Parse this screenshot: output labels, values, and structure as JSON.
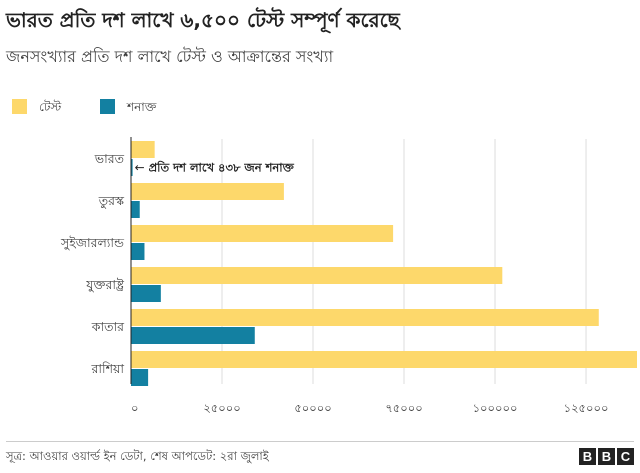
{
  "chart_data": {
    "type": "bar",
    "orientation": "horizontal",
    "title": "ভারত প্রতি দশ লাখে ৬,৫০০ টেস্ট সম্পূর্ণ করেছে",
    "subtitle": "জনসংখ্যার প্রতি দশ লাখে টেস্ট ও আক্রান্তের সংখ্যা",
    "categories": [
      "ভারত",
      "তুরস্ক",
      "সুইজারল্যান্ড",
      "যুক্তরাষ্ট্র",
      "কাতার",
      "রাশিয়া"
    ],
    "series": [
      {
        "name": "টেস্ট",
        "color": "#fdd86b",
        "values": [
          6500,
          42000,
          72000,
          102000,
          128500,
          139000
        ]
      },
      {
        "name": "শনাক্ত",
        "color": "#1380a1",
        "values": [
          438,
          2400,
          3700,
          8200,
          34000,
          4700
        ]
      }
    ],
    "xlim": [
      0,
      139000
    ],
    "xticks": [
      0,
      25000,
      50000,
      75000,
      100000,
      125000
    ],
    "xtick_labels": [
      "০",
      "২৫০০০",
      "৫০০০০",
      "৭৫০০০",
      "১০০০০০",
      "১২৫০০০"
    ],
    "annotation": "প্রতি দশ লাখে ৪৩৮ জন শনাক্ত",
    "annotation_arrow": "←",
    "grid": true,
    "legend_position": "top-left"
  },
  "footer": {
    "source": "সূত্র: আওয়ার ওয়ার্ল্ড ইন ডেটা, শেষ আপডেট: ২রা জুলাই",
    "logo_letters": [
      "B",
      "B",
      "C"
    ]
  }
}
